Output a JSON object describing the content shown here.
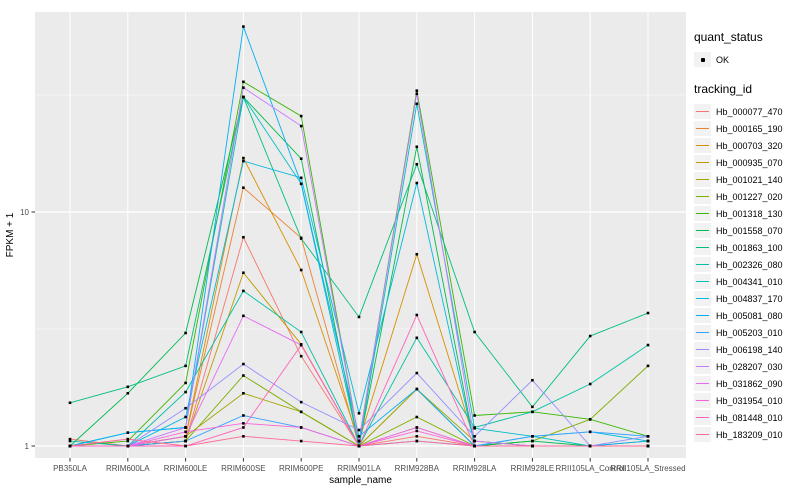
{
  "figure": {
    "bg": "#FFFFFF",
    "panel_bg": "#EBEBEB",
    "grid_color": "#FFFFFF",
    "tick_color": "#333333",
    "tick_label_color": "#4D4D4D",
    "axis_title_color": "#000000",
    "legend_key_bg": "#F2F2F2",
    "point_color": "#000000"
  },
  "axes": {
    "x_title": "sample_name",
    "y_title": "FPKM + 1",
    "y_ticks": [
      {
        "label": "1",
        "value": 1
      },
      {
        "label": "10",
        "value": 10
      }
    ]
  },
  "legend": {
    "quant_title": "quant_status",
    "quant_items": [
      {
        "label": "OK",
        "marker": "point"
      }
    ],
    "tracking_title": "tracking_id"
  },
  "chart_data": {
    "type": "line",
    "x_type": "categorical",
    "y_scale": "log10",
    "ylim": [
      1,
      75
    ],
    "grid": true,
    "legend_position": "right",
    "xlabel": "sample_name",
    "ylabel": "FPKM + 1",
    "marker": {
      "shape": "square",
      "color": "#000000",
      "size": 2.6
    },
    "categories": [
      "PB350LA",
      "RRIM600LA",
      "RRIM600LE",
      "RRIM600SE",
      "RRIM600PE",
      "RRIM901LA",
      "RRIM928BA",
      "RRIM928LA",
      "RRIM928LE",
      "RRII105LA_Control",
      "RRII105LA_Stressed"
    ],
    "series": [
      {
        "name": "Hb_000077_470",
        "color": "#F8766D",
        "values": [
          1.07,
          1.0,
          1.05,
          7.8,
          2.42,
          1.0,
          1.1,
          1.0,
          1.0,
          1.0,
          1.0
        ]
      },
      {
        "name": "Hb_000165_190",
        "color": "#EA8331",
        "values": [
          1.0,
          1.0,
          1.1,
          12.7,
          7.75,
          1.0,
          1.2,
          1.0,
          1.0,
          1.0,
          1.0
        ]
      },
      {
        "name": "Hb_000703_320",
        "color": "#D89000",
        "values": [
          1.0,
          1.0,
          1.1,
          17.0,
          5.65,
          1.05,
          6.6,
          1.05,
          1.0,
          1.0,
          1.0
        ]
      },
      {
        "name": "Hb_000935_070",
        "color": "#C09B00",
        "values": [
          1.0,
          1.0,
          1.05,
          5.5,
          2.72,
          1.0,
          1.75,
          1.0,
          1.0,
          1.0,
          1.0
        ]
      },
      {
        "name": "Hb_001021_140",
        "color": "#A3A500",
        "values": [
          1.0,
          1.0,
          1.1,
          1.68,
          1.4,
          1.0,
          1.75,
          1.05,
          1.0,
          1.0,
          1.05
        ]
      },
      {
        "name": "Hb_001227_020",
        "color": "#7CAE00",
        "values": [
          1.0,
          1.0,
          1.05,
          2.0,
          1.4,
          1.0,
          1.33,
          1.0,
          1.05,
          1.3,
          2.2
        ]
      },
      {
        "name": "Hb_001318_130",
        "color": "#39B600",
        "values": [
          1.0,
          1.05,
          1.86,
          36.0,
          25.7,
          1.05,
          33.0,
          1.35,
          1.4,
          1.3,
          1.1
        ]
      },
      {
        "name": "Hb_001558_070",
        "color": "#00BB4E",
        "values": [
          1.0,
          1.68,
          3.04,
          31.0,
          16.9,
          1.0,
          19.0,
          1.0,
          1.05,
          1.0,
          1.0
        ]
      },
      {
        "name": "Hb_001863_100",
        "color": "#00BF7D",
        "values": [
          1.53,
          1.79,
          2.2,
          31.0,
          7.7,
          3.56,
          16.0,
          3.07,
          1.47,
          2.95,
          3.7
        ]
      },
      {
        "name": "Hb_002326_080",
        "color": "#00C1A3",
        "values": [
          1.05,
          1.0,
          1.7,
          4.6,
          3.07,
          1.0,
          2.9,
          1.2,
          1.4,
          1.84,
          2.7
        ]
      },
      {
        "name": "Hb_004341_010",
        "color": "#00BFC4",
        "values": [
          1.0,
          1.14,
          1.2,
          31.0,
          13.2,
          1.0,
          29.0,
          1.19,
          1.1,
          1.0,
          1.0
        ]
      },
      {
        "name": "Hb_004837_170",
        "color": "#00BAE0",
        "values": [
          1.0,
          1.0,
          1.33,
          16.5,
          14.0,
          1.38,
          13.3,
          1.0,
          1.1,
          1.15,
          1.05
        ]
      },
      {
        "name": "Hb_005081_080",
        "color": "#00B0F6",
        "values": [
          1.0,
          1.14,
          1.2,
          62.0,
          13.2,
          1.1,
          1.75,
          1.0,
          1.0,
          1.0,
          1.05
        ]
      },
      {
        "name": "Hb_005203_010",
        "color": "#35A2FF",
        "values": [
          1.0,
          1.0,
          1.05,
          1.35,
          1.2,
          1.0,
          1.05,
          1.0,
          1.1,
          1.15,
          1.1
        ]
      },
      {
        "name": "Hb_006198_140",
        "color": "#9590FF",
        "values": [
          1.0,
          1.0,
          1.45,
          2.24,
          1.54,
          1.17,
          2.05,
          1.1,
          1.91,
          1.0,
          1.1
        ]
      },
      {
        "name": "Hb_028207_030",
        "color": "#C77CFF",
        "values": [
          1.0,
          1.0,
          1.2,
          34.0,
          23.3,
          1.05,
          32.0,
          1.05,
          1.0,
          1.0,
          1.0
        ]
      },
      {
        "name": "Hb_031862_090",
        "color": "#E76BF3",
        "values": [
          1.0,
          1.0,
          1.1,
          3.6,
          2.7,
          1.0,
          1.2,
          1.0,
          1.0,
          1.0,
          1.0
        ]
      },
      {
        "name": "Hb_031954_010",
        "color": "#FA62DB",
        "values": [
          1.0,
          1.0,
          1.15,
          1.25,
          1.2,
          1.0,
          1.16,
          1.0,
          1.0,
          1.0,
          1.0
        ]
      },
      {
        "name": "Hb_081448_010",
        "color": "#FF62BC",
        "values": [
          1.0,
          1.0,
          1.0,
          1.2,
          2.7,
          1.0,
          3.63,
          1.0,
          1.0,
          1.0,
          1.0
        ]
      },
      {
        "name": "Hb_183209_010",
        "color": "#FF6A98",
        "values": [
          1.0,
          1.07,
          1.0,
          1.1,
          1.05,
          1.0,
          1.05,
          1.0,
          1.0,
          1.0,
          1.0
        ]
      }
    ]
  }
}
